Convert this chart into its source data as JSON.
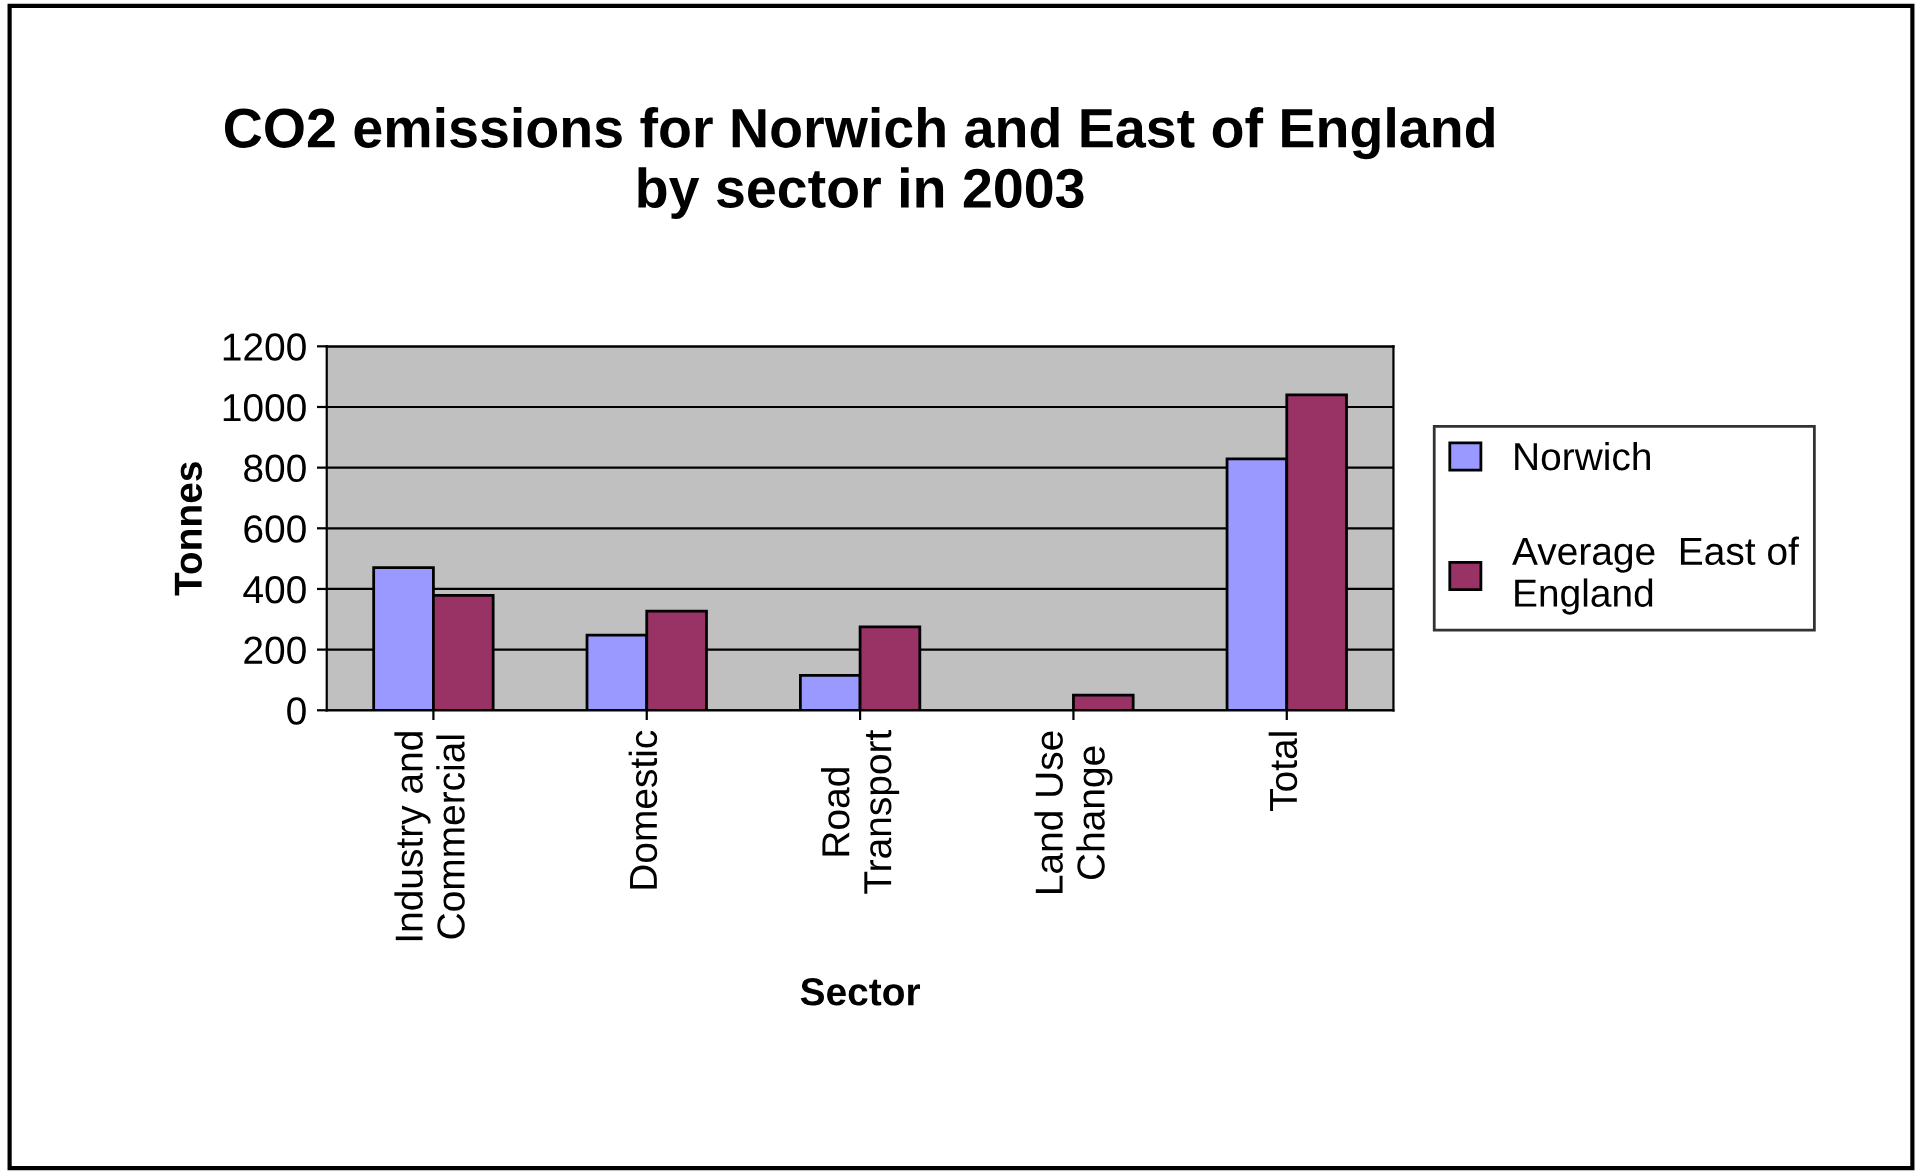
{
  "chart_data": {
    "type": "bar",
    "title": "CO2 emissions for Norwich and East of England\nby sector in 2003",
    "xlabel": "Sector",
    "ylabel": "Tonnes",
    "categories": [
      "Industry and\nCommercial",
      "Domestic",
      "Road\nTransport",
      "Land Use\nChange",
      "Total"
    ],
    "series": [
      {
        "name": "Norwich",
        "color": "#9999ff",
        "values": [
          470,
          248,
          115,
          null,
          829
        ]
      },
      {
        "name": "Average  East of\nEngland",
        "color": "#993366",
        "values": [
          379,
          327,
          275,
          50,
          1040
        ]
      }
    ],
    "ylim": [
      0,
      1200
    ],
    "yticks": [
      0,
      200,
      400,
      600,
      800,
      1000,
      1200
    ],
    "grid": "y",
    "legend": "right"
  }
}
